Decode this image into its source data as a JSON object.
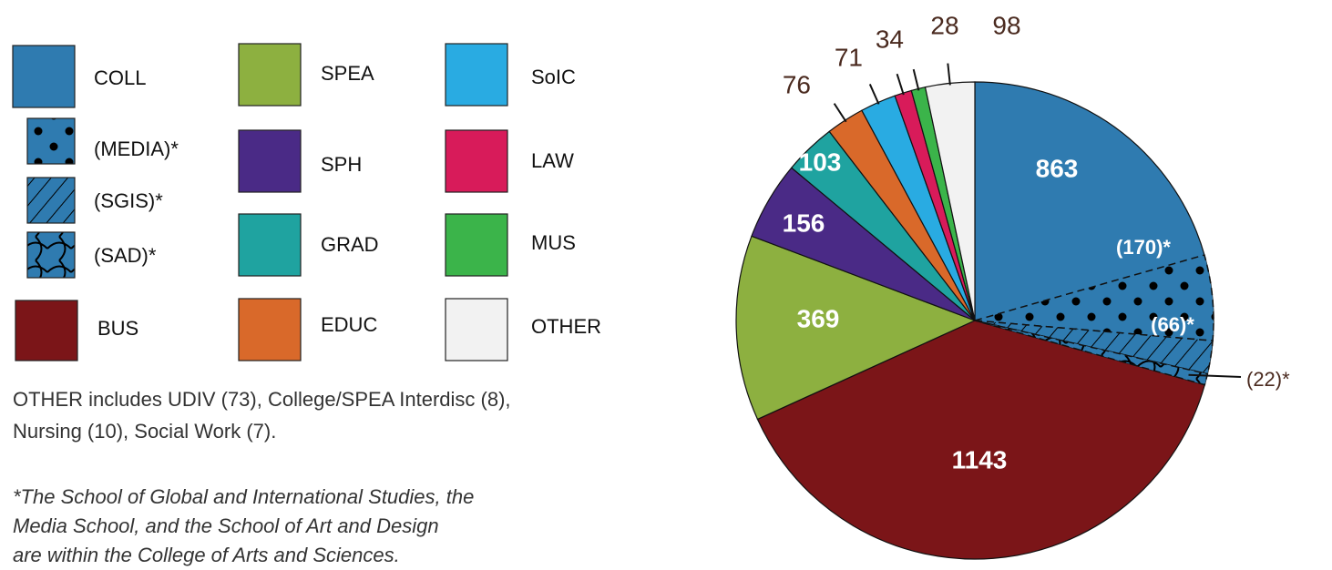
{
  "chart_data": {
    "type": "pie",
    "categories": [
      "COLL",
      "BUS",
      "SPEA",
      "SPH",
      "GRAD",
      "EDUC",
      "SoIC",
      "LAW",
      "MUS",
      "OTHER"
    ],
    "values": [
      863,
      1143,
      369,
      156,
      103,
      76,
      71,
      34,
      28,
      98
    ],
    "colors": [
      "#2f7bb0",
      "#7b1518",
      "#8db040",
      "#4a2a86",
      "#1fa3a0",
      "#d9692a",
      "#29abe2",
      "#d81b5a",
      "#3bb44a",
      "#f2f2f2"
    ],
    "sub_slices": [
      {
        "name": "(MEDIA)*",
        "value": 170,
        "label": "(170)*",
        "pattern": "dots"
      },
      {
        "name": "(SGIS)*",
        "value": 66,
        "label": "(66)*",
        "pattern": "hatch"
      },
      {
        "name": "(SAD)*",
        "value": 22,
        "label": "(22)*",
        "pattern": "curves"
      }
    ],
    "note_lines": [
      "OTHER includes UDIV (73), College/SPEA Interdisc (8),",
      "Nursing (10), Social Work (7)."
    ],
    "footnote_lines": [
      "*The School of Global and International Studies, the",
      "Media School, and the School of Art and Design",
      "are within the College of Arts and Sciences."
    ]
  }
}
